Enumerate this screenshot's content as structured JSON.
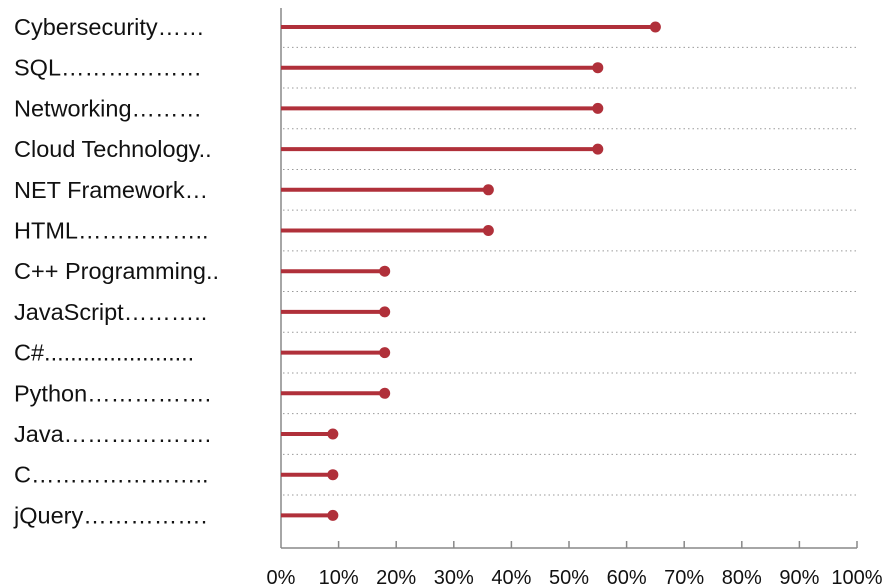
{
  "chart_data": {
    "type": "lollipop",
    "orientation": "horizontal",
    "categories": [
      "Cybersecurity……",
      "SQL………………",
      "Networking………",
      "Cloud Technology..",
      "NET Framework…",
      "HTML……………..",
      "C++ Programming..",
      "JavaScript………..",
      "C#.......................",
      "Python…………….",
      "Java……………….",
      "C…………………..",
      "jQuery……………."
    ],
    "values": [
      65,
      55,
      55,
      55,
      36,
      36,
      18,
      18,
      18,
      18,
      9,
      9,
      9
    ],
    "xlim": [
      0,
      100
    ],
    "xticks": [
      0,
      10,
      20,
      30,
      40,
      50,
      60,
      70,
      80,
      90,
      100
    ],
    "xtick_labels": [
      "0%",
      "10%",
      "20%",
      "30%",
      "40%",
      "50%",
      "60%",
      "70%",
      "80%",
      "90%",
      "100%"
    ],
    "title": "",
    "xlabel": "",
    "ylabel": "",
    "grid": "dotted horizontal separators between rows",
    "legend": "none",
    "colors": {
      "mark": "#b0303a",
      "axis": "#888888",
      "grid": "#9a9a9a",
      "text": "#111111"
    }
  }
}
